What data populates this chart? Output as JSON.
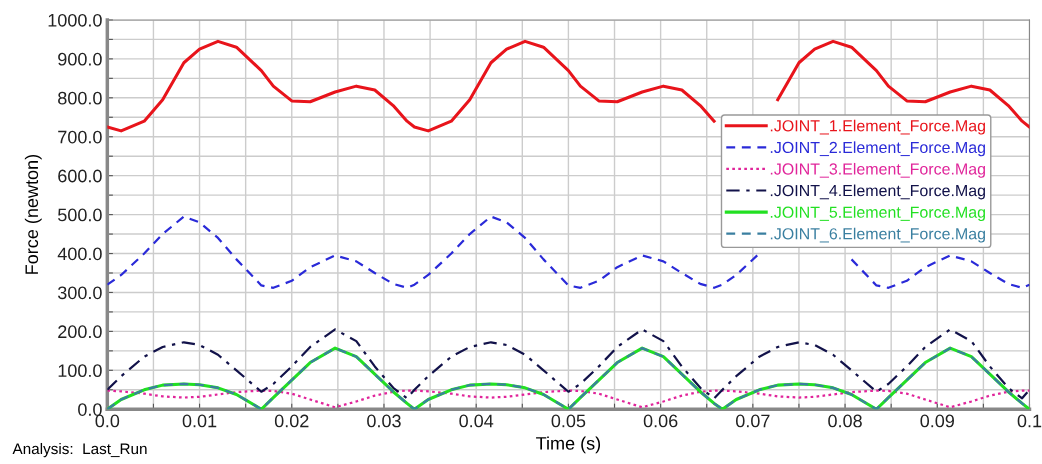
{
  "chart_data": {
    "type": "line",
    "xlabel": "Time (s)",
    "ylabel": "Force (newton)",
    "annotations": [
      "Analysis:  Last_Run"
    ],
    "x": [
      0,
      0.0015,
      0.004,
      0.006,
      0.0083,
      0.01,
      0.012,
      0.014,
      0.0167,
      0.018,
      0.02,
      0.022,
      0.0247,
      0.027,
      0.029,
      0.031,
      0.0325,
      0.0333,
      0.0348,
      0.0373,
      0.0393,
      0.0416,
      0.0433,
      0.0453,
      0.0473,
      0.05,
      0.0513,
      0.0533,
      0.0553,
      0.058,
      0.0603,
      0.0623,
      0.0643,
      0.0658,
      0.0667,
      0.0682,
      0.0707,
      0.0727,
      0.075,
      0.0767,
      0.0787,
      0.0807,
      0.0834,
      0.0847,
      0.0867,
      0.0887,
      0.0914,
      0.0937,
      0.0957,
      0.0977,
      0.0992,
      0.1
    ],
    "series": [
      {
        "name": ".JOINT_1.Element_Force.Mag",
        "color": "#e8141b",
        "line_style": "solid",
        "values": [
          725,
          715,
          740,
          795,
          890,
          925,
          945,
          930,
          870,
          830,
          792,
          790,
          815,
          830,
          820,
          780,
          740,
          725,
          715,
          740,
          795,
          890,
          925,
          945,
          930,
          870,
          830,
          792,
          790,
          815,
          830,
          820,
          780,
          740,
          null,
          null,
          null,
          795,
          890,
          925,
          945,
          930,
          870,
          830,
          792,
          790,
          815,
          830,
          820,
          780,
          740,
          725
        ]
      },
      {
        "name": ".JOINT_2.Element_Force.Mag",
        "color": "#2a2ad8",
        "line_style": "dashed",
        "values": [
          320,
          345,
          400,
          450,
          495,
          480,
          440,
          385,
          318,
          312,
          330,
          365,
          395,
          380,
          350,
          322,
          312,
          320,
          345,
          400,
          450,
          495,
          480,
          440,
          385,
          318,
          312,
          330,
          365,
          395,
          380,
          350,
          322,
          312,
          320,
          345,
          400,
          null,
          null,
          null,
          null,
          385,
          318,
          312,
          330,
          365,
          395,
          380,
          350,
          322,
          312,
          320
        ]
      },
      {
        "name": ".JOINT_3.Element_Force.Mag",
        "color": "#e0249a",
        "line_style": "dotted",
        "values": [
          48,
          46,
          40,
          33,
          30,
          32,
          38,
          44,
          48,
          47,
          40,
          25,
          5,
          20,
          35,
          45,
          48,
          48,
          46,
          40,
          33,
          30,
          32,
          38,
          44,
          48,
          47,
          40,
          25,
          5,
          20,
          35,
          45,
          48,
          48,
          46,
          40,
          33,
          30,
          32,
          38,
          44,
          48,
          47,
          40,
          25,
          5,
          20,
          35,
          45,
          48,
          48
        ]
      },
      {
        "name": ".JOINT_4.Element_Force.Mag",
        "color": "#12124a",
        "line_style": "dashdot",
        "values": [
          50,
          85,
          135,
          160,
          172,
          165,
          140,
          100,
          45,
          65,
          110,
          160,
          205,
          175,
          110,
          55,
          28,
          50,
          85,
          135,
          160,
          172,
          165,
          140,
          100,
          45,
          65,
          110,
          160,
          205,
          175,
          110,
          55,
          28,
          50,
          85,
          135,
          160,
          172,
          165,
          140,
          100,
          45,
          65,
          110,
          160,
          205,
          175,
          110,
          55,
          28,
          50
        ]
      },
      {
        "name": ".JOINT_5.Element_Force.Mag",
        "color": "#22e022",
        "line_style": "solid",
        "values": [
          0,
          25,
          50,
          62,
          65,
          63,
          55,
          38,
          0,
          30,
          75,
          120,
          157,
          135,
          90,
          45,
          15,
          0,
          25,
          50,
          62,
          65,
          63,
          55,
          38,
          0,
          30,
          75,
          120,
          157,
          135,
          90,
          45,
          15,
          0,
          25,
          50,
          62,
          65,
          63,
          55,
          38,
          0,
          30,
          75,
          120,
          157,
          135,
          90,
          45,
          15,
          0
        ]
      },
      {
        "name": ".JOINT_6.Element_Force.Mag",
        "color": "#3a7fa0",
        "line_style": "dashed",
        "values": [
          0,
          25,
          50,
          62,
          65,
          63,
          55,
          38,
          0,
          30,
          75,
          120,
          157,
          135,
          90,
          45,
          15,
          0,
          25,
          50,
          62,
          65,
          63,
          55,
          38,
          0,
          30,
          75,
          120,
          157,
          135,
          90,
          45,
          15,
          0,
          25,
          50,
          62,
          65,
          63,
          55,
          38,
          0,
          30,
          75,
          120,
          157,
          135,
          90,
          45,
          15,
          0
        ]
      }
    ],
    "xlim": [
      0,
      0.1
    ],
    "xticks": [
      {
        "value": 0,
        "label": "0.0"
      },
      {
        "value": 0.005,
        "label": null
      },
      0.01,
      {
        "value": 0.015,
        "label": null
      },
      0.02,
      {
        "value": 0.025,
        "label": null
      },
      0.03,
      {
        "value": 0.035,
        "label": null
      },
      0.04,
      {
        "value": 0.045,
        "label": null
      },
      0.05,
      {
        "value": 0.055,
        "label": null
      },
      0.06,
      {
        "value": 0.065,
        "label": null
      },
      0.07,
      {
        "value": 0.075,
        "label": null
      },
      0.08,
      {
        "value": 0.085,
        "label": null
      },
      0.09,
      {
        "value": 0.095,
        "label": null
      },
      0.1
    ],
    "ylim": [
      0,
      1000
    ],
    "yticks": [
      {
        "value": 0,
        "label": "0.0"
      },
      {
        "value": 50,
        "label": null
      },
      {
        "value": 100,
        "label": "100.0"
      },
      {
        "value": 150,
        "label": null
      },
      {
        "value": 200,
        "label": "200.0"
      },
      {
        "value": 250,
        "label": null
      },
      {
        "value": 300,
        "label": "300.0"
      },
      {
        "value": 350,
        "label": null
      },
      {
        "value": 400,
        "label": "400.0"
      },
      {
        "value": 450,
        "label": null
      },
      {
        "value": 500,
        "label": "500.0"
      },
      {
        "value": 550,
        "label": null
      },
      {
        "value": 600,
        "label": "600.0"
      },
      {
        "value": 650,
        "label": null
      },
      {
        "value": 700,
        "label": "700.0"
      },
      {
        "value": 750,
        "label": null
      },
      {
        "value": 800,
        "label": "800.0"
      },
      {
        "value": 850,
        "label": null
      },
      {
        "value": 900,
        "label": "900.0"
      },
      {
        "value": 950,
        "label": null
      },
      {
        "value": 1000,
        "label": "1000.0"
      }
    ],
    "grid": true,
    "legend": "right",
    "marker": "none"
  }
}
